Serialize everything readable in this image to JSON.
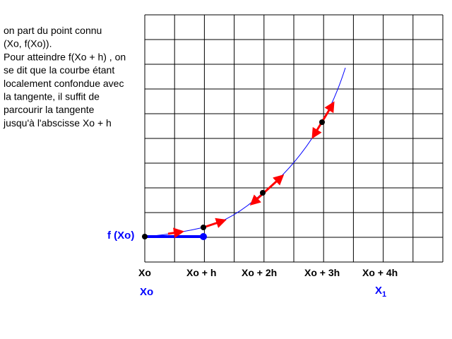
{
  "explanation": {
    "lines": [
      "on part du point connu",
      "(Xo, f(Xo)).",
      "Pour atteindre f(Xo + h) , on",
      "se dit que la courbe étant",
      "localement confondue avec",
      "la tangente, il suffit de",
      "parcourir la tangente",
      "jusqu'à l'abscisse Xo + h"
    ]
  },
  "labels": {
    "y_label": "f (Xo)",
    "x_ticks": [
      "Xo",
      "Xo + h",
      "Xo + 2h",
      "Xo + 3h",
      "Xo + 4h"
    ],
    "start": "Xo",
    "end": {
      "base": "X",
      "subscript": "1"
    }
  }
}
